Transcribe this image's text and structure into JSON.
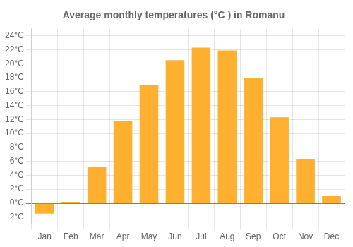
{
  "chart_data": {
    "type": "bar",
    "title": "Average monthly temperatures (°C ) in Romanu",
    "categories": [
      "Jan",
      "Feb",
      "Mar",
      "Apr",
      "May",
      "Jun",
      "Jul",
      "Aug",
      "Sep",
      "Oct",
      "Nov",
      "Dec"
    ],
    "values": [
      -1.5,
      0.2,
      5.2,
      11.8,
      17.0,
      20.5,
      22.3,
      21.9,
      18.0,
      12.3,
      6.3,
      1.0
    ],
    "color": "#FFB030",
    "ylim": [
      -3,
      25
    ],
    "yticks": [
      {
        "value": -2,
        "label": "-2°C"
      },
      {
        "value": 0,
        "label": "0°C"
      },
      {
        "value": 2,
        "label": "2°C"
      },
      {
        "value": 4,
        "label": "4°C"
      },
      {
        "value": 6,
        "label": "6°C"
      },
      {
        "value": 8,
        "label": "8°C"
      },
      {
        "value": 10,
        "label": "10°C"
      },
      {
        "value": 12,
        "label": "12°C"
      },
      {
        "value": 14,
        "label": "14°C"
      },
      {
        "value": 16,
        "label": "16°C"
      },
      {
        "value": 18,
        "label": "18°C"
      },
      {
        "value": 20,
        "label": "20°C"
      },
      {
        "value": 22,
        "label": "22°C"
      },
      {
        "value": 24,
        "label": "24°C"
      }
    ],
    "grid": true
  }
}
